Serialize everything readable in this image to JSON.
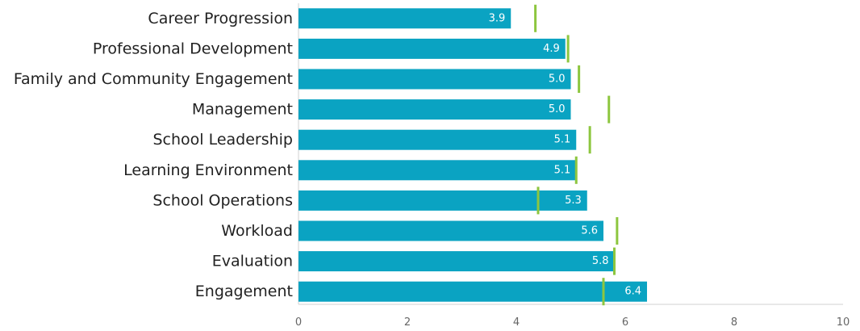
{
  "chart_data": {
    "type": "bar",
    "orientation": "horizontal",
    "categories": [
      "Career Progression",
      "Professional Development",
      "Family and Community Engagement",
      "Management",
      "School Leadership",
      "Learning Environment",
      "School Operations",
      "Workload",
      "Evaluation",
      "Engagement"
    ],
    "series": [
      {
        "values": [
          3.9,
          4.9,
          5.0,
          5.0,
          5.1,
          5.1,
          5.3,
          5.6,
          5.8,
          6.4
        ],
        "data_labels": [
          "3.9",
          "4.9",
          "5.0",
          "5.0",
          "5.1",
          "5.1",
          "5.3",
          "5.6",
          "5.8",
          "6.4"
        ],
        "color": "#0aa3c2"
      },
      {
        "type": "marker",
        "values": [
          4.35,
          4.95,
          5.15,
          5.7,
          5.35,
          5.1,
          4.4,
          5.85,
          5.8,
          5.6
        ],
        "color": "#8dc63f"
      }
    ],
    "xlim": [
      0,
      10
    ],
    "xticks": [
      "0",
      "2",
      "4",
      "6",
      "8",
      "10"
    ],
    "grid": false,
    "legend": "none",
    "title": "",
    "xlabel": "",
    "ylabel": ""
  }
}
